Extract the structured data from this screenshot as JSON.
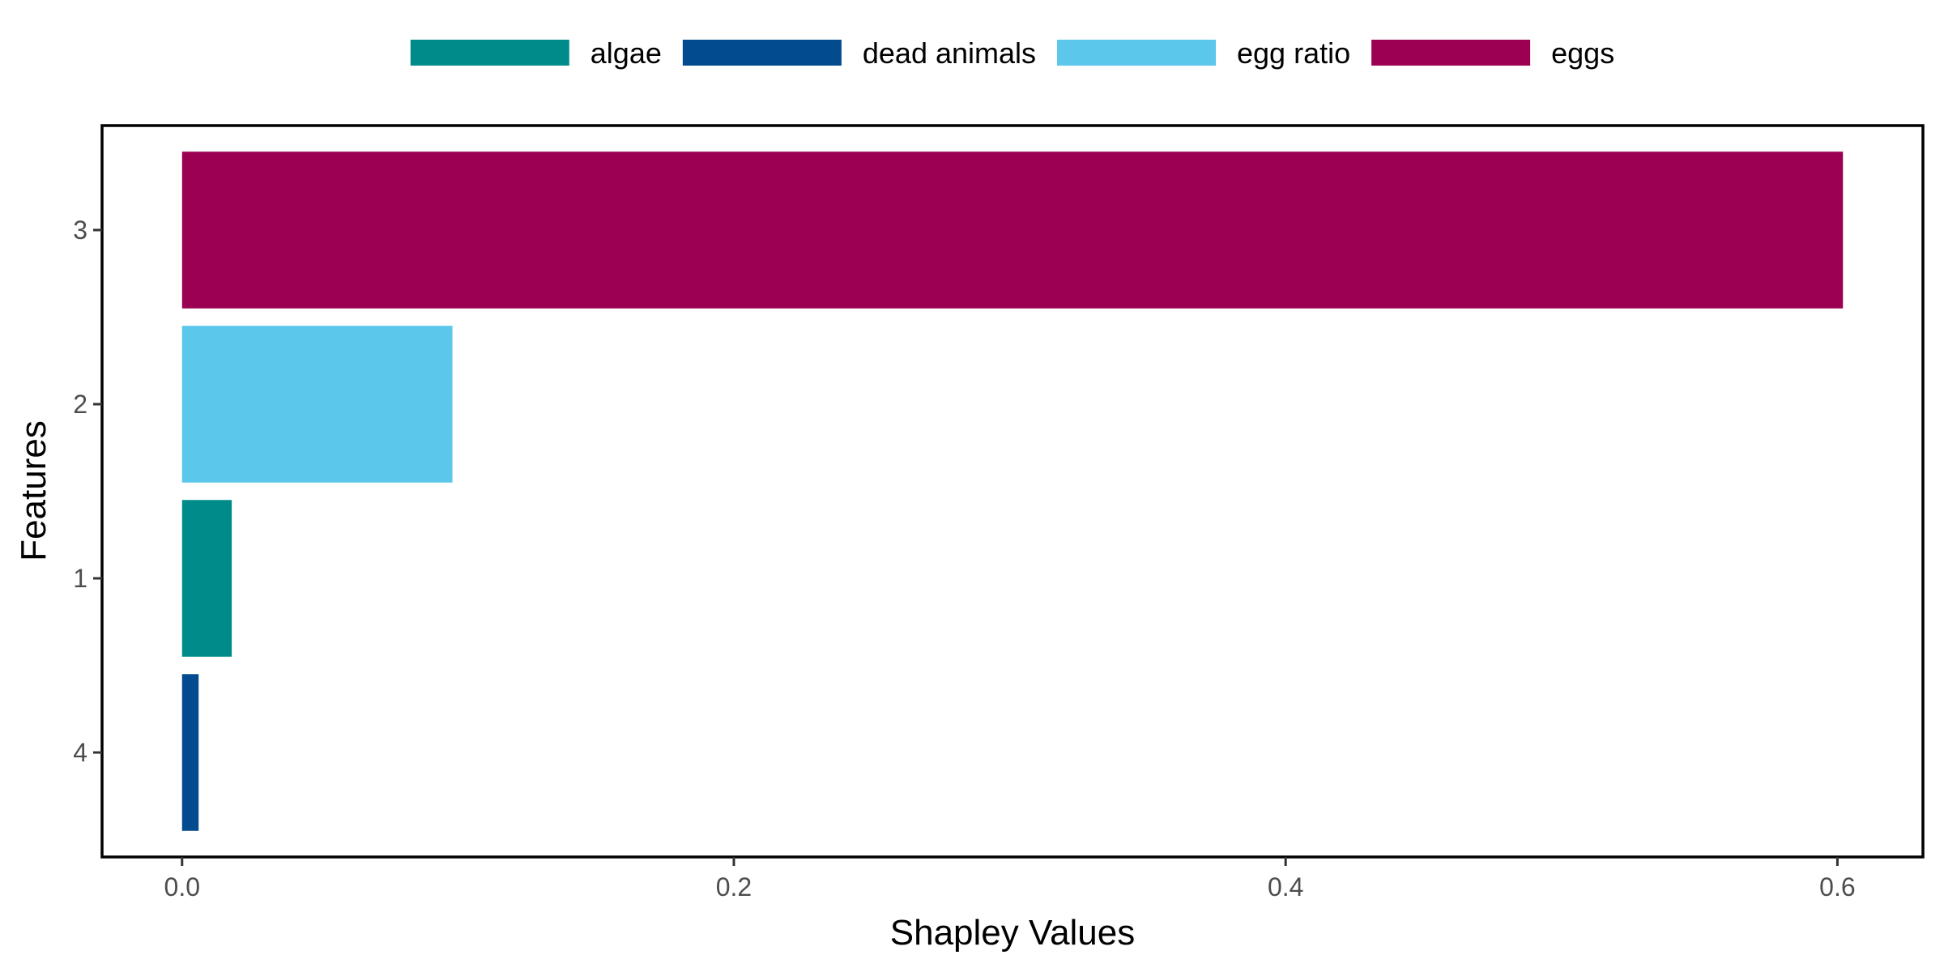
{
  "chart_data": {
    "type": "bar",
    "orientation": "horizontal",
    "xlabel": "Shapley Values",
    "ylabel": "Features",
    "categories": [
      "3",
      "2",
      "1",
      "4"
    ],
    "values": [
      0.602,
      0.098,
      0.018,
      0.006
    ],
    "bar_series": [
      "eggs",
      "egg ratio",
      "algae",
      "dead animals"
    ],
    "xlim": [
      -0.029,
      0.631
    ],
    "xticks": [
      0.0,
      0.2,
      0.4,
      0.6
    ],
    "xtick_labels": [
      "0.0",
      "0.2",
      "0.4",
      "0.6"
    ],
    "grid": false,
    "legend_position": "top",
    "legend": [
      {
        "name": "algae",
        "color": "#008B8B"
      },
      {
        "name": "dead animals",
        "color": "#024B8E"
      },
      {
        "name": "egg ratio",
        "color": "#5BC7EB"
      },
      {
        "name": "eggs",
        "color": "#9B0052"
      }
    ]
  }
}
